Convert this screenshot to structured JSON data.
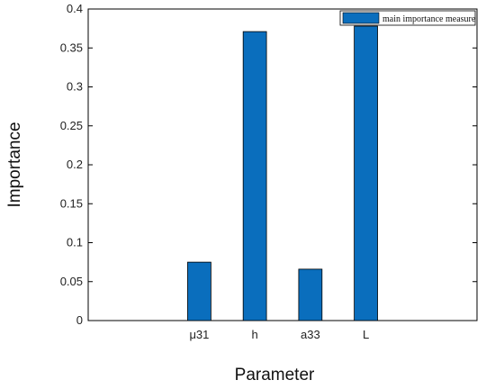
{
  "chart_data": {
    "type": "bar",
    "categories": [
      "",
      "μ31",
      "h",
      "a33",
      "L",
      ""
    ],
    "series": [
      {
        "name": "main importance measure",
        "values": [
          null,
          0.075,
          0.371,
          0.066,
          0.378,
          null
        ]
      }
    ],
    "xlabel": "Parameter",
    "ylabel": "Importance",
    "ylim": [
      0,
      0.4
    ],
    "yticks": [
      "0",
      "0.05",
      "0.1",
      "0.15",
      "0.2",
      "0.25",
      "0.3",
      "0.35",
      "0.4"
    ],
    "grid": false,
    "legend": "top-right",
    "colors": {
      "bar": "#0a6ebd",
      "bar_edge": "#000000",
      "axis": "#000000"
    }
  }
}
